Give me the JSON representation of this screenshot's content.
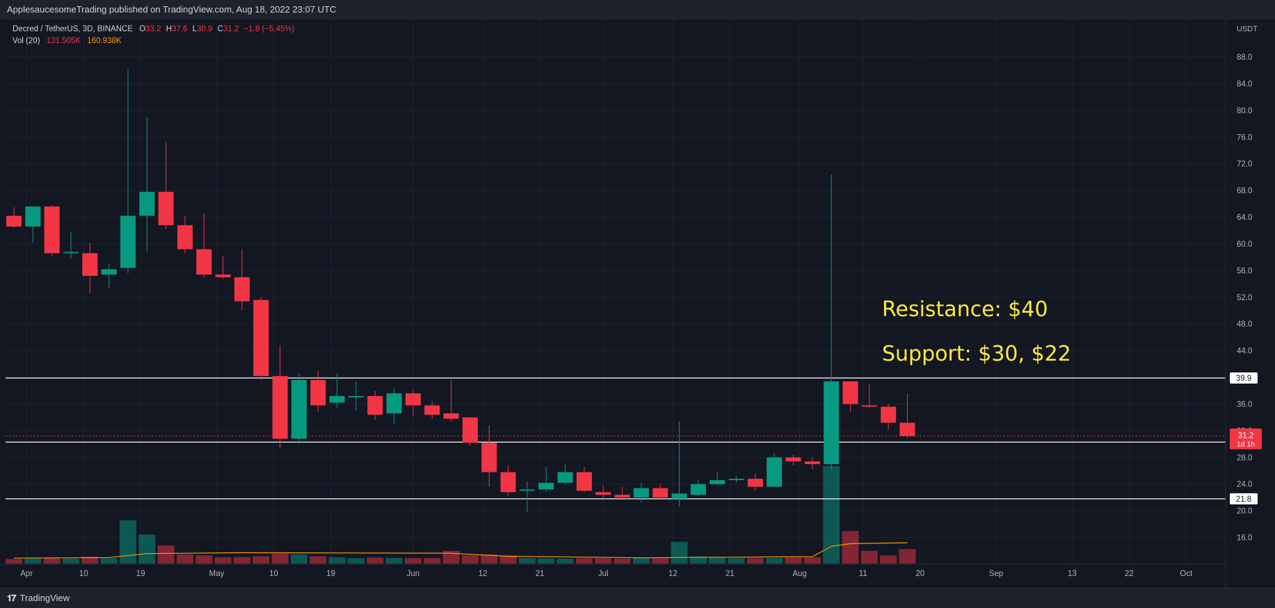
{
  "header": {
    "published": "ApplesaucesomeTrading published on TradingView.com, Aug 18, 2022 23:07 UTC"
  },
  "legend": {
    "symbol": "Decred / TetherUS, 3D, BINANCE",
    "o_label": "O",
    "o_value": "33.2",
    "h_label": "H",
    "h_value": "37.6",
    "l_label": "L",
    "l_value": "30.9",
    "c_label": "C",
    "c_value": "31.2",
    "change": "−1.8 (−5.45%)",
    "vol_label": "Vol (20)",
    "vol_value": "131.505K",
    "vol_ma": "160.938K"
  },
  "annotations": {
    "resistance": "Resistance: $40",
    "support": "Support: $30, $22"
  },
  "footer": {
    "brand": "TradingView"
  },
  "colors": {
    "up": "#089981",
    "down": "#f23645",
    "background": "#131722",
    "grid": "#1f2330",
    "text": "#d1d4dc",
    "annotation": "#ffeb3b",
    "volume_ma": "#ff9800"
  },
  "chart_data": {
    "type": "candlestick",
    "interval": "3D",
    "y_unit": "USDT",
    "ylim": [
      12,
      93
    ],
    "y_ticks": [
      "16.0",
      "20.0",
      "24.0",
      "28.0",
      "32.0",
      "36.0",
      "40.0",
      "44.0",
      "48.0",
      "52.0",
      "56.0",
      "60.0",
      "64.0",
      "68.0",
      "72.0",
      "76.0",
      "80.0",
      "84.0",
      "88.0"
    ],
    "x_range": [
      "2022-03-30",
      "2022-10-07"
    ],
    "x_ticks": [
      {
        "date": "2022-04-01",
        "label": "Apr"
      },
      {
        "date": "2022-04-10",
        "label": "10"
      },
      {
        "date": "2022-04-19",
        "label": "19"
      },
      {
        "date": "2022-05-01",
        "label": "May"
      },
      {
        "date": "2022-05-10",
        "label": "10"
      },
      {
        "date": "2022-05-19",
        "label": "19"
      },
      {
        "date": "2022-06-01",
        "label": "Jun"
      },
      {
        "date": "2022-06-12",
        "label": "12"
      },
      {
        "date": "2022-06-21",
        "label": "21"
      },
      {
        "date": "2022-07-01",
        "label": "Jul"
      },
      {
        "date": "2022-07-12",
        "label": "12"
      },
      {
        "date": "2022-07-21",
        "label": "21"
      },
      {
        "date": "2022-08-01",
        "label": "Aug"
      },
      {
        "date": "2022-08-11",
        "label": "11"
      },
      {
        "date": "2022-08-20",
        "label": "20"
      },
      {
        "date": "2022-09-01",
        "label": "Sep"
      },
      {
        "date": "2022-09-13",
        "label": "13"
      },
      {
        "date": "2022-09-22",
        "label": "22"
      },
      {
        "date": "2022-10-01",
        "label": "Oct"
      }
    ],
    "candles": [
      {
        "date": "2022-03-30",
        "o": 64.2,
        "h": 65.5,
        "l": 62.4,
        "c": 62.6,
        "v": 0.25
      },
      {
        "date": "2022-04-02",
        "o": 62.6,
        "h": 65.6,
        "l": 60.2,
        "c": 65.6,
        "v": 0.28
      },
      {
        "date": "2022-04-05",
        "o": 65.6,
        "h": 65.8,
        "l": 58.2,
        "c": 58.6,
        "v": 0.33
      },
      {
        "date": "2022-04-08",
        "o": 58.6,
        "h": 61.8,
        "l": 57.8,
        "c": 58.8,
        "v": 0.27
      },
      {
        "date": "2022-04-11",
        "o": 58.6,
        "h": 60.2,
        "l": 52.6,
        "c": 55.2,
        "v": 0.38
      },
      {
        "date": "2022-04-14",
        "o": 55.4,
        "h": 57.0,
        "l": 53.4,
        "c": 56.2,
        "v": 0.3
      },
      {
        "date": "2022-04-17",
        "o": 56.4,
        "h": 86.2,
        "l": 55.6,
        "c": 64.2,
        "v": 2.4
      },
      {
        "date": "2022-04-20",
        "o": 64.2,
        "h": 79.0,
        "l": 58.8,
        "c": 67.8,
        "v": 1.6
      },
      {
        "date": "2022-04-23",
        "o": 67.8,
        "h": 75.2,
        "l": 62.2,
        "c": 62.8,
        "v": 1.0
      },
      {
        "date": "2022-04-26",
        "o": 62.8,
        "h": 64.2,
        "l": 58.6,
        "c": 59.2,
        "v": 0.5
      },
      {
        "date": "2022-04-29",
        "o": 59.2,
        "h": 64.6,
        "l": 55.0,
        "c": 55.4,
        "v": 0.45
      },
      {
        "date": "2022-05-02",
        "o": 55.4,
        "h": 58.2,
        "l": 54.8,
        "c": 55.0,
        "v": 0.34
      },
      {
        "date": "2022-05-05",
        "o": 55.0,
        "h": 59.2,
        "l": 50.0,
        "c": 51.4,
        "v": 0.36
      },
      {
        "date": "2022-05-08",
        "o": 51.6,
        "h": 52.0,
        "l": 39.6,
        "c": 40.2,
        "v": 0.4
      },
      {
        "date": "2022-05-11",
        "o": 40.2,
        "h": 44.8,
        "l": 29.4,
        "c": 30.8,
        "v": 0.55
      },
      {
        "date": "2022-05-14",
        "o": 30.8,
        "h": 40.6,
        "l": 30.0,
        "c": 39.6,
        "v": 0.5
      },
      {
        "date": "2022-05-17",
        "o": 39.6,
        "h": 41.0,
        "l": 34.8,
        "c": 35.8,
        "v": 0.4
      },
      {
        "date": "2022-05-20",
        "o": 36.2,
        "h": 40.6,
        "l": 35.4,
        "c": 37.2,
        "v": 0.35
      },
      {
        "date": "2022-05-23",
        "o": 37.0,
        "h": 39.4,
        "l": 35.0,
        "c": 37.2,
        "v": 0.3
      },
      {
        "date": "2022-05-26",
        "o": 37.2,
        "h": 38.0,
        "l": 33.6,
        "c": 34.4,
        "v": 0.33
      },
      {
        "date": "2022-05-29",
        "o": 34.6,
        "h": 38.4,
        "l": 33.0,
        "c": 37.6,
        "v": 0.31
      },
      {
        "date": "2022-06-01",
        "o": 37.6,
        "h": 38.2,
        "l": 34.2,
        "c": 35.8,
        "v": 0.3
      },
      {
        "date": "2022-06-04",
        "o": 35.8,
        "h": 36.4,
        "l": 33.8,
        "c": 34.4,
        "v": 0.3
      },
      {
        "date": "2022-06-07",
        "o": 34.6,
        "h": 39.6,
        "l": 33.4,
        "c": 33.8,
        "v": 0.7
      },
      {
        "date": "2022-06-10",
        "o": 34.0,
        "h": 34.0,
        "l": 29.8,
        "c": 30.2,
        "v": 0.45
      },
      {
        "date": "2022-06-13",
        "o": 30.2,
        "h": 32.8,
        "l": 23.6,
        "c": 25.8,
        "v": 0.5
      },
      {
        "date": "2022-06-16",
        "o": 25.8,
        "h": 26.8,
        "l": 22.2,
        "c": 22.8,
        "v": 0.45
      },
      {
        "date": "2022-06-19",
        "o": 23.0,
        "h": 24.4,
        "l": 19.8,
        "c": 23.2,
        "v": 0.3
      },
      {
        "date": "2022-06-22",
        "o": 23.2,
        "h": 26.6,
        "l": 22.8,
        "c": 24.2,
        "v": 0.28
      },
      {
        "date": "2022-06-25",
        "o": 24.2,
        "h": 27.0,
        "l": 24.0,
        "c": 25.8,
        "v": 0.27
      },
      {
        "date": "2022-06-28",
        "o": 25.8,
        "h": 26.6,
        "l": 22.8,
        "c": 23.0,
        "v": 0.3
      },
      {
        "date": "2022-07-01",
        "o": 22.8,
        "h": 23.8,
        "l": 21.6,
        "c": 22.4,
        "v": 0.3
      },
      {
        "date": "2022-07-04",
        "o": 22.4,
        "h": 23.6,
        "l": 21.6,
        "c": 22.0,
        "v": 0.28
      },
      {
        "date": "2022-07-07",
        "o": 22.0,
        "h": 24.2,
        "l": 21.2,
        "c": 23.4,
        "v": 0.32
      },
      {
        "date": "2022-07-10",
        "o": 23.4,
        "h": 24.0,
        "l": 21.8,
        "c": 22.0,
        "v": 0.3
      },
      {
        "date": "2022-07-13",
        "o": 21.8,
        "h": 33.4,
        "l": 20.6,
        "c": 22.6,
        "v": 1.2
      },
      {
        "date": "2022-07-16",
        "o": 22.4,
        "h": 24.6,
        "l": 22.2,
        "c": 24.0,
        "v": 0.4
      },
      {
        "date": "2022-07-19",
        "o": 24.0,
        "h": 25.8,
        "l": 23.8,
        "c": 24.6,
        "v": 0.35
      },
      {
        "date": "2022-07-22",
        "o": 24.6,
        "h": 25.2,
        "l": 24.2,
        "c": 24.8,
        "v": 0.3
      },
      {
        "date": "2022-07-25",
        "o": 24.8,
        "h": 25.6,
        "l": 23.0,
        "c": 23.6,
        "v": 0.3
      },
      {
        "date": "2022-07-28",
        "o": 23.6,
        "h": 28.6,
        "l": 23.6,
        "c": 28.0,
        "v": 0.3
      },
      {
        "date": "2022-07-31",
        "o": 28.0,
        "h": 28.4,
        "l": 26.8,
        "c": 27.4,
        "v": 0.33
      },
      {
        "date": "2022-08-03",
        "o": 27.4,
        "h": 28.0,
        "l": 26.2,
        "c": 27.0,
        "v": 0.34
      },
      {
        "date": "2022-08-06",
        "o": 27.0,
        "h": 70.4,
        "l": 26.2,
        "c": 39.4,
        "v": 5.4
      },
      {
        "date": "2022-08-09",
        "o": 39.4,
        "h": 39.4,
        "l": 34.8,
        "c": 36.0,
        "v": 1.8
      },
      {
        "date": "2022-08-12",
        "o": 35.8,
        "h": 39.0,
        "l": 35.4,
        "c": 35.6,
        "v": 0.7
      },
      {
        "date": "2022-08-15",
        "o": 35.6,
        "h": 36.0,
        "l": 32.2,
        "c": 33.2,
        "v": 0.45
      },
      {
        "date": "2022-08-18",
        "o": 33.2,
        "h": 37.6,
        "l": 30.9,
        "c": 31.2,
        "v": 0.8
      }
    ],
    "volume_ma": [
      {
        "date": "2022-03-30",
        "v": 0.3
      },
      {
        "date": "2022-04-14",
        "v": 0.33
      },
      {
        "date": "2022-04-20",
        "v": 0.55
      },
      {
        "date": "2022-05-05",
        "v": 0.6
      },
      {
        "date": "2022-06-07",
        "v": 0.57
      },
      {
        "date": "2022-06-16",
        "v": 0.4
      },
      {
        "date": "2022-07-07",
        "v": 0.32
      },
      {
        "date": "2022-08-03",
        "v": 0.38
      },
      {
        "date": "2022-08-06",
        "v": 0.95
      },
      {
        "date": "2022-08-09",
        "v": 1.1
      },
      {
        "date": "2022-08-18",
        "v": 1.15
      }
    ],
    "horizontal_lines": [
      {
        "price": 39.9,
        "label": "39.9"
      },
      {
        "price": 30.3,
        "label": "30.3"
      },
      {
        "price": 21.8,
        "label": "21.8"
      }
    ],
    "last_price": {
      "price": 31.2,
      "label": "31.2",
      "countdown": "1d 1h"
    }
  }
}
